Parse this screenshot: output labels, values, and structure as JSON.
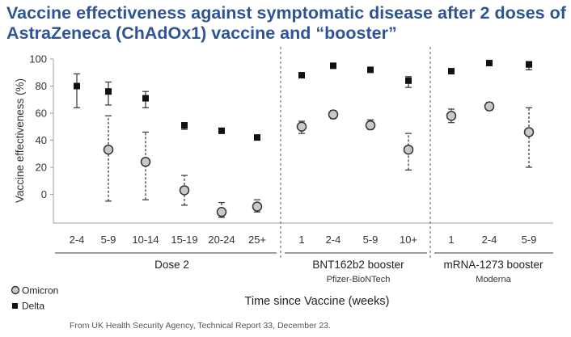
{
  "title_lines": [
    "Vaccine effectiveness against symptomatic disease after 2 doses of",
    "AstraZeneca (ChAdOx1) vaccine and “booster”"
  ],
  "source_note": "From UK Health Security Agency, Technical Report 33, December 23.",
  "chart_data": {
    "type": "scatter",
    "ylabel": "Vaccine effectiveness (%)",
    "xlabel": "Time since Vaccine (weeks)",
    "ylim": [
      -20,
      100
    ],
    "yticks": [
      0,
      20,
      40,
      60,
      80,
      100
    ],
    "grid": false,
    "legend_position": "bottom-left",
    "categories": [
      "2-4",
      "5-9",
      "10-14",
      "15-19",
      "20-24",
      "25+",
      "1",
      "2-4",
      "5-9",
      "10+",
      "1",
      "2-4",
      "5-9"
    ],
    "groups": [
      {
        "label": "Dose 2",
        "sublabel": "",
        "start": 0,
        "end": 5
      },
      {
        "label": "BNT162b2 booster",
        "sublabel": "Pfizer-BioNTech",
        "start": 6,
        "end": 9
      },
      {
        "label": "mRNA-1273 booster",
        "sublabel": "Moderna",
        "start": 10,
        "end": 12
      }
    ],
    "series": [
      {
        "name": "Omicron",
        "marker": "circle",
        "color": "#c8c8c8",
        "values": [
          null,
          33,
          24,
          3,
          -13,
          -9,
          50,
          59,
          51,
          33,
          58,
          65,
          46
        ],
        "ci_low": [
          null,
          -5,
          -4,
          -8,
          -17,
          -13,
          45,
          56,
          48,
          18,
          53,
          62,
          20
        ],
        "ci_high": [
          null,
          58,
          46,
          14,
          -6,
          -4,
          54,
          62,
          55,
          45,
          63,
          68,
          64
        ]
      },
      {
        "name": "Delta",
        "marker": "square",
        "color": "#111111",
        "values": [
          80,
          76,
          71,
          51,
          47,
          42,
          88,
          95,
          92,
          84,
          91,
          97,
          96
        ],
        "ci_low": [
          64,
          66,
          64,
          48,
          45,
          41,
          87,
          94,
          91,
          79,
          90,
          96,
          92
        ],
        "ci_high": [
          89,
          83,
          76,
          53,
          48,
          43,
          89,
          96,
          93,
          87,
          92,
          98,
          98
        ]
      }
    ]
  },
  "colors": {
    "title": "#2f5496",
    "axis": "#a0a0a0",
    "text": "#333333",
    "divider": "#555555"
  }
}
